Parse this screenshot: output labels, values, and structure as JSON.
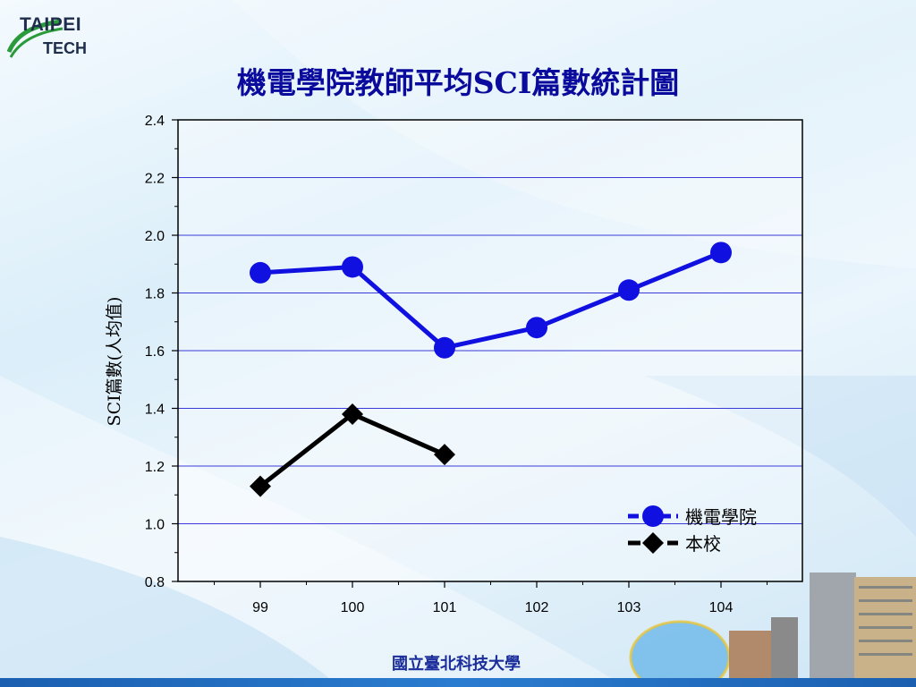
{
  "logo": {
    "line1": "TAIPEI",
    "line2": "TECH"
  },
  "footer": "國立臺北科技大學",
  "colors": {
    "college": "#1010e0",
    "school": "#000000",
    "gridline": "#3a3ad8",
    "title": "#0a0a9c"
  },
  "chart_data": {
    "type": "line",
    "title": "機電學院教師平均SCI篇數統計圖",
    "xlabel": "",
    "ylabel": "SCI篇數(人均值)",
    "categories": [
      "99",
      "100",
      "101",
      "102",
      "103",
      "104"
    ],
    "ylim": [
      0.8,
      2.4
    ],
    "yticks": [
      "0.8",
      "1.0",
      "1.2",
      "1.4",
      "1.6",
      "1.8",
      "2.0",
      "2.2",
      "2.4"
    ],
    "grid": true,
    "legend_position": "bottom-right",
    "series": [
      {
        "name": "機電學院",
        "marker": "circle",
        "values": [
          1.87,
          1.89,
          1.61,
          1.68,
          1.81,
          1.94
        ]
      },
      {
        "name": "本校",
        "marker": "diamond",
        "values": [
          1.13,
          1.38,
          1.24,
          null,
          null,
          null
        ]
      }
    ]
  }
}
